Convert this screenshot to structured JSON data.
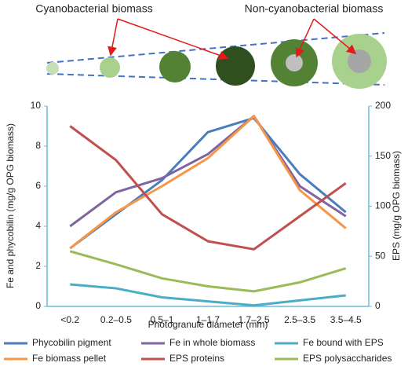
{
  "diagram": {
    "labels": [
      "Cyanobacterial biomass",
      "Non-cyanobacterial biomass"
    ]
  },
  "chart_data": {
    "type": "line",
    "y_label": "Fe and phycobilin (mg/g OPG biomass)",
    "y2_label": "EPS (mg/g OPG biomass)",
    "x_label": "Photogranule diameter (mm)",
    "categories": [
      "<0.2",
      "0.2–0.5",
      "0.5–1",
      "1–1.7",
      "1.7–2.5",
      "2.5–3.5",
      "3.5–4.5"
    ],
    "ylim": [
      0,
      10
    ],
    "yticks": [
      0,
      2,
      4,
      6,
      8,
      10
    ],
    "y2lim": [
      0,
      200
    ],
    "y2ticks": [
      0,
      50,
      100,
      150,
      200
    ],
    "series": [
      {
        "name": "Phycobilin pigment",
        "color": "#4a7ebb",
        "values": [
          2.9,
          4.6,
          6.3,
          8.7,
          9.4,
          6.6,
          4.7
        ]
      },
      {
        "name": "Fe in whole biomass",
        "color": "#8064a2",
        "values": [
          4.0,
          5.7,
          6.4,
          7.6,
          9.5,
          6.0,
          4.5
        ]
      },
      {
        "name": "Fe bound with EPS",
        "color": "#4bacc6",
        "values": [
          1.1,
          0.9,
          0.45,
          0.25,
          0.05,
          0.3,
          0.55
        ]
      },
      {
        "name": "Fe biomass pellet",
        "color": "#f79646",
        "values": [
          2.9,
          4.7,
          6.0,
          7.4,
          9.5,
          5.8,
          3.9
        ]
      },
      {
        "name": "EPS proteins",
        "color": "#c0504d",
        "axis": "y2",
        "values": [
          180,
          146,
          92,
          65,
          57,
          90,
          123
        ]
      },
      {
        "name": "EPS polysaccharides",
        "color": "#9bbb59",
        "axis": "y2",
        "values": [
          55,
          42,
          28,
          20,
          15,
          24,
          38
        ]
      }
    ]
  }
}
